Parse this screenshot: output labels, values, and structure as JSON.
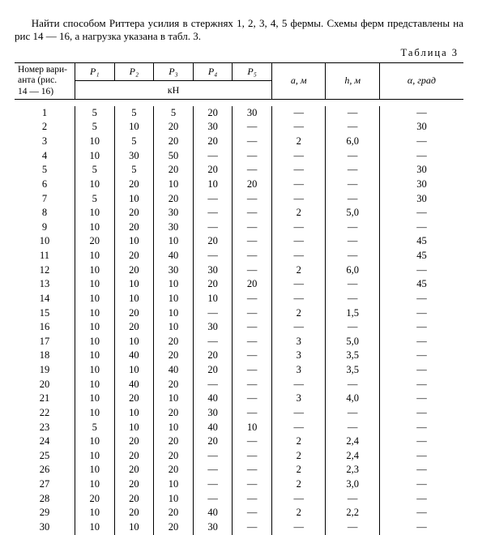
{
  "intro": "Найти способом Риттера усилия в стержнях 1, 2, 3, 4, 5 фермы. Схемы ферм представлены на рис 14 — 16, а нагрузка указана в табл. 3.",
  "table_caption": "Таблица 3",
  "headers": {
    "variant_line1": "Номер вари-",
    "variant_line2": "анта (рис.",
    "variant_line3": "14 — 16)",
    "p": [
      "P₁",
      "P₂",
      "P₃",
      "P₄",
      "P₅"
    ],
    "kn": "кН",
    "a": "a, м",
    "h": "h, м",
    "deg": "α, град"
  },
  "rows": [
    {
      "n": "1",
      "p": [
        "5",
        "5",
        "5",
        "20",
        "30"
      ],
      "a": "—",
      "h": "—",
      "d": "—"
    },
    {
      "n": "2",
      "p": [
        "5",
        "10",
        "20",
        "30",
        "—"
      ],
      "a": "—",
      "h": "—",
      "d": "30"
    },
    {
      "n": "3",
      "p": [
        "10",
        "5",
        "20",
        "20",
        "—"
      ],
      "a": "2",
      "h": "6,0",
      "d": "—"
    },
    {
      "n": "4",
      "p": [
        "10",
        "30",
        "50",
        "—",
        "—"
      ],
      "a": "—",
      "h": "—",
      "d": "—"
    },
    {
      "n": "5",
      "p": [
        "5",
        "5",
        "20",
        "20",
        "—"
      ],
      "a": "—",
      "h": "—",
      "d": "30"
    },
    {
      "n": "6",
      "p": [
        "10",
        "20",
        "10",
        "10",
        "20"
      ],
      "a": "—",
      "h": "—",
      "d": "30"
    },
    {
      "n": "7",
      "p": [
        "5",
        "10",
        "20",
        "—",
        "—"
      ],
      "a": "—",
      "h": "—",
      "d": "30"
    },
    {
      "n": "8",
      "p": [
        "10",
        "20",
        "30",
        "—",
        "—"
      ],
      "a": "2",
      "h": "5,0",
      "d": "—"
    },
    {
      "n": "9",
      "p": [
        "10",
        "20",
        "30",
        "—",
        "—"
      ],
      "a": "—",
      "h": "—",
      "d": "—"
    },
    {
      "n": "10",
      "p": [
        "20",
        "10",
        "10",
        "20",
        "—"
      ],
      "a": "—",
      "h": "—",
      "d": "45"
    },
    {
      "n": "11",
      "p": [
        "10",
        "20",
        "40",
        "—",
        "—"
      ],
      "a": "—",
      "h": "—",
      "d": "45"
    },
    {
      "n": "12",
      "p": [
        "10",
        "20",
        "30",
        "30",
        "—"
      ],
      "a": "2",
      "h": "6,0",
      "d": "—"
    },
    {
      "n": "13",
      "p": [
        "10",
        "10",
        "10",
        "20",
        "20"
      ],
      "a": "—",
      "h": "—",
      "d": "45"
    },
    {
      "n": "14",
      "p": [
        "10",
        "10",
        "10",
        "10",
        "—"
      ],
      "a": "—",
      "h": "—",
      "d": "—"
    },
    {
      "n": "15",
      "p": [
        "10",
        "20",
        "10",
        "—",
        "—"
      ],
      "a": "2",
      "h": "1,5",
      "d": "—"
    },
    {
      "n": "16",
      "p": [
        "10",
        "20",
        "10",
        "30",
        "—"
      ],
      "a": "—",
      "h": "—",
      "d": "—"
    },
    {
      "n": "17",
      "p": [
        "10",
        "10",
        "20",
        "—",
        "—"
      ],
      "a": "3",
      "h": "5,0",
      "d": "—"
    },
    {
      "n": "18",
      "p": [
        "10",
        "40",
        "20",
        "20",
        "—"
      ],
      "a": "3",
      "h": "3,5",
      "d": "—"
    },
    {
      "n": "19",
      "p": [
        "10",
        "10",
        "40",
        "20",
        "—"
      ],
      "a": "3",
      "h": "3,5",
      "d": "—"
    },
    {
      "n": "20",
      "p": [
        "10",
        "40",
        "20",
        "—",
        "—"
      ],
      "a": "—",
      "h": "—",
      "d": "—"
    },
    {
      "n": "21",
      "p": [
        "10",
        "20",
        "10",
        "40",
        "—"
      ],
      "a": "3",
      "h": "4,0",
      "d": "—"
    },
    {
      "n": "22",
      "p": [
        "10",
        "10",
        "20",
        "30",
        "—"
      ],
      "a": "—",
      "h": "—",
      "d": "—"
    },
    {
      "n": "23",
      "p": [
        "5",
        "10",
        "10",
        "40",
        "10"
      ],
      "a": "—",
      "h": "—",
      "d": "—"
    },
    {
      "n": "24",
      "p": [
        "10",
        "20",
        "20",
        "20",
        "—"
      ],
      "a": "2",
      "h": "2,4",
      "d": "—"
    },
    {
      "n": "25",
      "p": [
        "10",
        "20",
        "20",
        "—",
        "—"
      ],
      "a": "2",
      "h": "2,4",
      "d": "—"
    },
    {
      "n": "26",
      "p": [
        "10",
        "20",
        "20",
        "—",
        "—"
      ],
      "a": "2",
      "h": "2,3",
      "d": "—"
    },
    {
      "n": "27",
      "p": [
        "10",
        "20",
        "10",
        "—",
        "—"
      ],
      "a": "2",
      "h": "3,0",
      "d": "—"
    },
    {
      "n": "28",
      "p": [
        "20",
        "20",
        "10",
        "—",
        "—"
      ],
      "a": "—",
      "h": "—",
      "d": "—"
    },
    {
      "n": "29",
      "p": [
        "10",
        "20",
        "20",
        "40",
        "—"
      ],
      "a": "2",
      "h": "2,2",
      "d": "—"
    },
    {
      "n": "30",
      "p": [
        "10",
        "10",
        "20",
        "30",
        "—"
      ],
      "a": "—",
      "h": "—",
      "d": "—"
    }
  ]
}
